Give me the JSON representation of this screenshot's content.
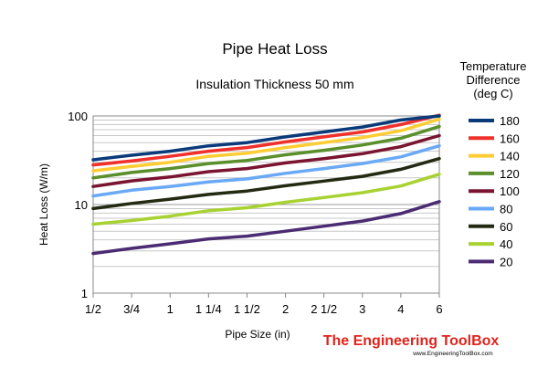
{
  "chart_data": {
    "type": "line",
    "title": "Pipe Heat Loss",
    "subtitle": "Insulation Thickness 50 mm",
    "xlabel": "Pipe Size (in)",
    "ylabel": "Heat Loss (W/m)",
    "y_scale": "log",
    "ylim": [
      1,
      100
    ],
    "y_ticks": [
      "1",
      "10",
      "100"
    ],
    "grid": true,
    "legend_title": [
      "Temperature",
      "Difference",
      "(deg C)"
    ],
    "legend_position": "right",
    "categories": [
      "1/2",
      "3/4",
      "1",
      "1 1/4",
      "1 1/2",
      "2",
      "2 1/2",
      "3",
      "4",
      "6"
    ],
    "series": [
      {
        "name": "180",
        "color": "#0b3a7a",
        "values": [
          32,
          36,
          40,
          46,
          50,
          58,
          66,
          75,
          90,
          100
        ]
      },
      {
        "name": "160",
        "color": "#f0302a",
        "values": [
          28,
          31,
          35,
          40,
          44,
          51,
          58,
          66,
          80,
          102
        ]
      },
      {
        "name": "140",
        "color": "#ffcc33",
        "values": [
          24,
          27,
          30,
          35,
          38,
          44,
          50,
          57,
          68,
          92
        ]
      },
      {
        "name": "120",
        "color": "#5a8f2c",
        "values": [
          20,
          23,
          25.5,
          29,
          31.5,
          36.5,
          41,
          47,
          56,
          76
        ]
      },
      {
        "name": "100",
        "color": "#7a1430",
        "values": [
          16,
          18.5,
          20.5,
          23.5,
          25.5,
          29.5,
          33,
          37.5,
          45,
          60
        ]
      },
      {
        "name": "80",
        "color": "#6aa9f5",
        "values": [
          12.5,
          14.5,
          16,
          18,
          19.5,
          22.5,
          25.5,
          29,
          34.5,
          46
        ]
      },
      {
        "name": "60",
        "color": "#232a12",
        "values": [
          9,
          10.3,
          11.5,
          13,
          14.2,
          16.3,
          18.4,
          20.8,
          25,
          33
        ]
      },
      {
        "name": "40",
        "color": "#a8d232",
        "values": [
          6,
          6.6,
          7.4,
          8.5,
          9.2,
          10.6,
          12,
          13.6,
          16.2,
          22
        ]
      },
      {
        "name": "20",
        "color": "#4b2c73",
        "values": [
          2.8,
          3.2,
          3.6,
          4.1,
          4.4,
          5.0,
          5.7,
          6.5,
          7.9,
          10.8
        ]
      }
    ]
  },
  "branding": {
    "logo_text": "The Engineering ToolBox",
    "url": "www.EngineeringToolBox.com"
  }
}
